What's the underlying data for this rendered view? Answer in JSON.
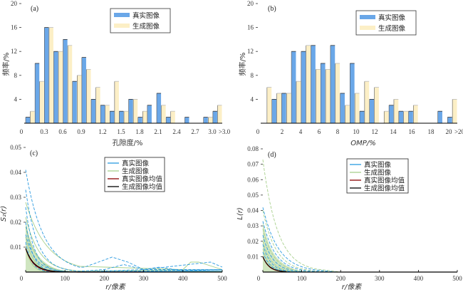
{
  "colors": {
    "real": "#6aa7e8",
    "gen": "#fcefc6",
    "real_line": "#2a9ae0",
    "gen_line": "#a8d08d",
    "real_mean": "#8b0000",
    "gen_mean": "#000000"
  },
  "chart_data": [
    {
      "type": "bar",
      "panel": "(a)",
      "title": "",
      "xlabel": "孔隙度/%",
      "ylabel": "频率/%",
      "ylim": [
        0,
        20
      ],
      "yticks": [
        "0",
        "4",
        "8",
        "12",
        "16",
        "20"
      ],
      "xticks": [
        "0.3",
        "0.6",
        "0.9",
        "1.2",
        "1.5",
        "1.8",
        "2.1",
        "2.4",
        "2.7",
        "3.0",
        ">3.0"
      ],
      "x0_label": "0",
      "legend": {
        "position": "top-right",
        "entries": [
          "真实图像",
          "生成图像"
        ]
      },
      "series": [
        {
          "name": "真实图像",
          "values": [
            1,
            10,
            16,
            12,
            14,
            7,
            11,
            4,
            3,
            2,
            2,
            4,
            1,
            3,
            5,
            1,
            0,
            1,
            0,
            1,
            2
          ]
        },
        {
          "name": "生成图像",
          "values": [
            2,
            7,
            16,
            12,
            13,
            8,
            9,
            6,
            3,
            7,
            2,
            4,
            2,
            0,
            3,
            2,
            0,
            0,
            0,
            1,
            3
          ]
        }
      ]
    },
    {
      "type": "bar",
      "panel": "(b)",
      "title": "",
      "xlabel": "OMP/%",
      "ylabel": "频率/%",
      "ylim": [
        0,
        20
      ],
      "yticks": [
        "0",
        "4",
        "8",
        "12",
        "16",
        "20"
      ],
      "xticks": [
        "2",
        "4",
        "6",
        "8",
        "10",
        "12",
        "14",
        "16",
        "18",
        "20",
        ">20"
      ],
      "x0_label": "0",
      "legend": {
        "position": "top-right",
        "entries": [
          "真实图像",
          "生成图像"
        ]
      },
      "series": [
        {
          "name": "真实图像",
          "values": [
            0,
            4,
            5,
            12,
            12,
            13,
            10,
            13,
            5,
            10,
            2,
            4,
            0,
            3,
            2,
            2,
            0,
            0,
            2,
            1
          ]
        },
        {
          "name": "生成图像",
          "values": [
            6,
            5,
            5,
            7,
            13,
            9,
            9,
            10,
            3,
            5,
            7,
            6,
            2,
            4,
            2,
            3,
            0,
            0,
            0,
            4
          ]
        }
      ]
    },
    {
      "type": "line",
      "panel": "(c)",
      "xlabel": "r/像素",
      "ylabel": "S₂(r)",
      "xlim": [
        0,
        500
      ],
      "ylim": [
        0,
        0.05
      ],
      "xticks": [
        "0",
        "100",
        "200",
        "300",
        "400",
        "500"
      ],
      "yticks": [
        "0.01",
        "0.02",
        "0.03",
        "0.04",
        "0.05"
      ],
      "legend": {
        "position": "top-right",
        "entries": [
          "真实图像",
          "生成图像",
          "真实图像均值",
          "生成图像均值"
        ]
      },
      "series": [
        {
          "name": "真实图像",
          "style": "dashed",
          "samples": [
            {
              "start": 0.041,
              "decay": 45,
              "tail": [
                [
                  150,
                  0.002
                ],
                [
                  220,
                  0.006
                ],
                [
                  260,
                  0.004
                ],
                [
                  300,
                  0.001
                ],
                [
                  500,
                  0.001
                ]
              ]
            },
            {
              "start": 0.033,
              "decay": 30,
              "tail": [
                [
                  200,
                  0.001
                ],
                [
                  250,
                  0.003
                ],
                [
                  300,
                  0.001
                ],
                [
                  470,
                  0.004
                ],
                [
                  500,
                  0.002
                ]
              ]
            },
            {
              "start": 0.026,
              "decay": 22,
              "tail": [
                [
                  300,
                  0.001
                ],
                [
                  340,
                  0.002
                ],
                [
                  400,
                  0.0005
                ],
                [
                  500,
                  0.001
                ]
              ]
            },
            {
              "start": 0.02,
              "decay": 18,
              "tail": [
                [
                  500,
                  0.0005
                ]
              ]
            },
            {
              "start": 0.015,
              "decay": 25,
              "tail": [
                [
                  500,
                  0.001
                ]
              ]
            },
            {
              "start": 0.012,
              "decay": 15,
              "tail": [
                [
                  500,
                  0.0005
                ]
              ]
            }
          ]
        },
        {
          "name": "生成图像",
          "style": "solid",
          "samples": [
            {
              "start": 0.028,
              "decay": 55,
              "tail": [
                [
                  200,
                  0.002
                ],
                [
                  400,
                  0.001
                ],
                [
                  420,
                  0.004
                ],
                [
                  440,
                  0.004
                ],
                [
                  500,
                  0.001
                ]
              ]
            },
            {
              "start": 0.022,
              "decay": 35,
              "tail": [
                [
                  500,
                  0.001
                ]
              ]
            },
            {
              "start": 0.018,
              "decay": 28,
              "tail": [
                [
                  500,
                  0.0005
                ]
              ]
            },
            {
              "start": 0.014,
              "decay": 20,
              "tail": [
                [
                  500,
                  0.0005
                ]
              ]
            },
            {
              "start": 0.01,
              "decay": 14,
              "tail": [
                [
                  500,
                  0.0003
                ]
              ]
            }
          ]
        },
        {
          "name": "真实图像均值",
          "start": 0.0095,
          "decay": 20
        },
        {
          "name": "生成图像均值",
          "start": 0.0095,
          "decay": 22
        }
      ]
    },
    {
      "type": "line",
      "panel": "(d)",
      "xlabel": "r/像素",
      "ylabel": "L(r)",
      "xlim": [
        0,
        500
      ],
      "ylim": [
        0,
        0.08
      ],
      "xticks": [
        "0",
        "100",
        "200",
        "300",
        "400",
        "500"
      ],
      "yticks": [
        "0.01",
        "0.02",
        "0.03",
        "0.04",
        "0.05",
        "0.06",
        "0.07",
        "0.08"
      ],
      "legend": {
        "position": "top-right",
        "entries": [
          "真实图像",
          "生成图像",
          "真实图像均值",
          "生成图像均值"
        ]
      },
      "series": [
        {
          "name": "真实图像",
          "style": "dashed",
          "samples": [
            {
              "start": 0.042,
              "decay": 40,
              "end": 190
            },
            {
              "start": 0.033,
              "decay": 32,
              "end": 180
            },
            {
              "start": 0.024,
              "decay": 25,
              "end": 150
            },
            {
              "start": 0.018,
              "decay": 20,
              "end": 130
            },
            {
              "start": 0.013,
              "decay": 18,
              "end": 120
            }
          ]
        },
        {
          "name": "生成图像",
          "style": "dashed",
          "samples": [
            {
              "start": 0.073,
              "decay": 38,
              "end": 200
            },
            {
              "start": 0.04,
              "decay": 34,
              "end": 190
            },
            {
              "start": 0.028,
              "decay": 28,
              "end": 160
            },
            {
              "start": 0.02,
              "decay": 22,
              "end": 140
            },
            {
              "start": 0.015,
              "decay": 18,
              "end": 120
            }
          ]
        },
        {
          "name": "真实图像均值",
          "start": 0.01,
          "decay": 16,
          "end": 60
        },
        {
          "name": "生成图像均值",
          "start": 0.01,
          "decay": 17,
          "end": 60
        }
      ]
    }
  ]
}
